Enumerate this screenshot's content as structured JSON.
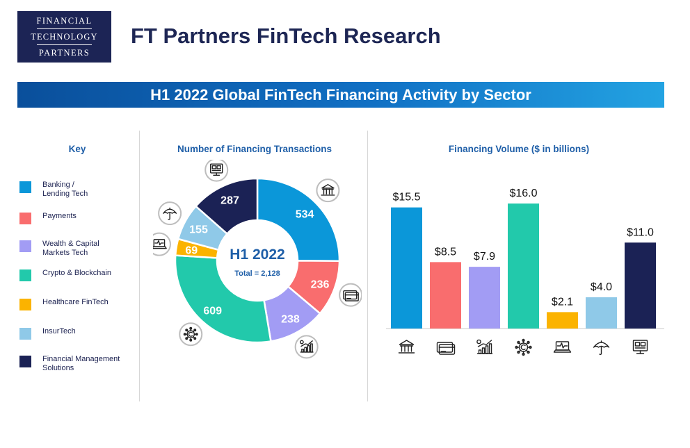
{
  "logo": {
    "line1": "FINANCIAL",
    "line2": "TECHNOLOGY",
    "line3": "PARTNERS"
  },
  "page_title": "FT Partners FinTech Research",
  "banner": "H1 2022 Global FinTech Financing Activity by Sector",
  "key": {
    "title": "Key",
    "items": [
      {
        "line1": "Banking /",
        "line2": "Lending Tech",
        "color": "#0b97d9"
      },
      {
        "line1": "Payments",
        "line2": "",
        "color": "#f96d6e"
      },
      {
        "line1": "Wealth & Capital",
        "line2": "Markets Tech",
        "color": "#a29cf4"
      },
      {
        "line1": "Crypto & Blockchain",
        "line2": "",
        "color": "#22c9ab"
      },
      {
        "line1": "Healthcare FinTech",
        "line2": "",
        "color": "#fbb300"
      },
      {
        "line1": "InsurTech",
        "line2": "",
        "color": "#8fc9e8"
      },
      {
        "line1": "Financial Management",
        "line2": "Solutions",
        "color": "#1b2255"
      }
    ]
  },
  "chart_data": [
    {
      "type": "pie",
      "title": "Number of Financing Transactions",
      "center_label": "H1 2022",
      "center_sublabel": "Total = 2,128",
      "categories": [
        "Banking / Lending Tech",
        "Payments",
        "Wealth & Capital Markets Tech",
        "Crypto & Blockchain",
        "Healthcare FinTech",
        "InsurTech",
        "Financial Management Solutions"
      ],
      "values": [
        534,
        236,
        238,
        609,
        69,
        155,
        287
      ],
      "labels": [
        "534",
        "236",
        "238",
        "609",
        "69",
        "155",
        "287"
      ],
      "colors": [
        "#0b97d9",
        "#f96d6e",
        "#a29cf4",
        "#22c9ab",
        "#fbb300",
        "#8fc9e8",
        "#1b2255"
      ],
      "icons": [
        "bank-icon",
        "credit-card-icon",
        "wealth-icon",
        "crypto-coin-icon",
        "healthcare-laptop-icon",
        "umbrella-icon",
        "financial-management-icon"
      ]
    },
    {
      "type": "bar",
      "title": "Financing Volume ($ in billions)",
      "categories": [
        "Banking / Lending Tech",
        "Payments",
        "Wealth & Capital Markets Tech",
        "Crypto & Blockchain",
        "Healthcare FinTech",
        "InsurTech",
        "Financial Management Solutions"
      ],
      "values": [
        15.5,
        8.5,
        7.9,
        16.0,
        2.1,
        4.0,
        11.0
      ],
      "labels": [
        "$15.5",
        "$8.5",
        "$7.9",
        "$16.0",
        "$2.1",
        "$4.0",
        "$11.0"
      ],
      "colors": [
        "#0b97d9",
        "#f96d6e",
        "#a29cf4",
        "#22c9ab",
        "#fbb300",
        "#8fc9e8",
        "#1b2255"
      ],
      "icons": [
        "bank-icon",
        "credit-card-icon",
        "wealth-icon",
        "crypto-coin-icon",
        "healthcare-laptop-icon",
        "umbrella-icon",
        "financial-management-icon"
      ],
      "ylim": [
        0,
        16.0
      ],
      "grid": false
    }
  ]
}
